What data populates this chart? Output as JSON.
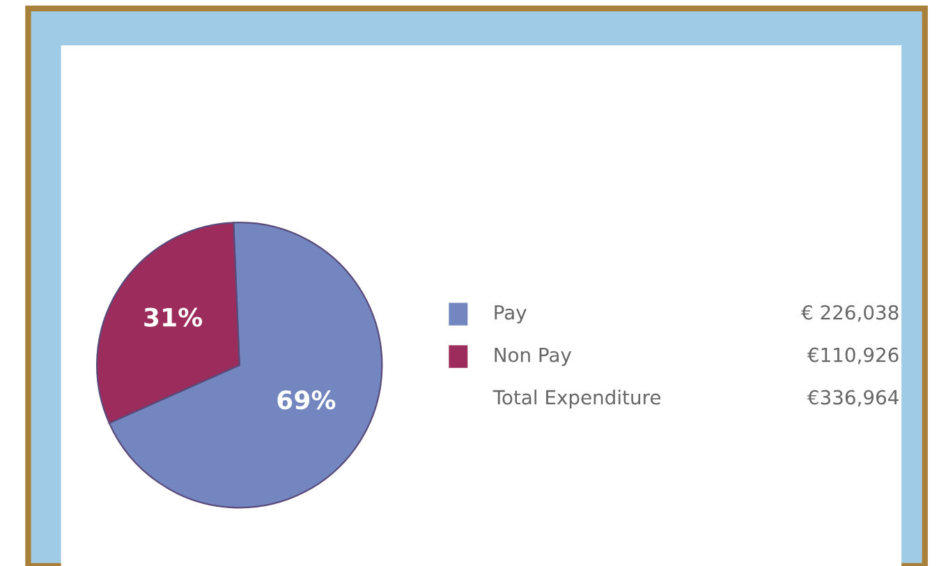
{
  "chart_data": {
    "type": "pie",
    "categories": [
      "Pay",
      "Non Pay"
    ],
    "values": [
      69,
      31
    ],
    "colors": [
      "#7386c0",
      "#9c2c5c"
    ],
    "value_labels": [
      "69%",
      "31%"
    ],
    "legend": "right",
    "annotations": [
      "€ 226,038",
      "€110,926",
      "Total Expenditure",
      "€336,964"
    ]
  }
}
